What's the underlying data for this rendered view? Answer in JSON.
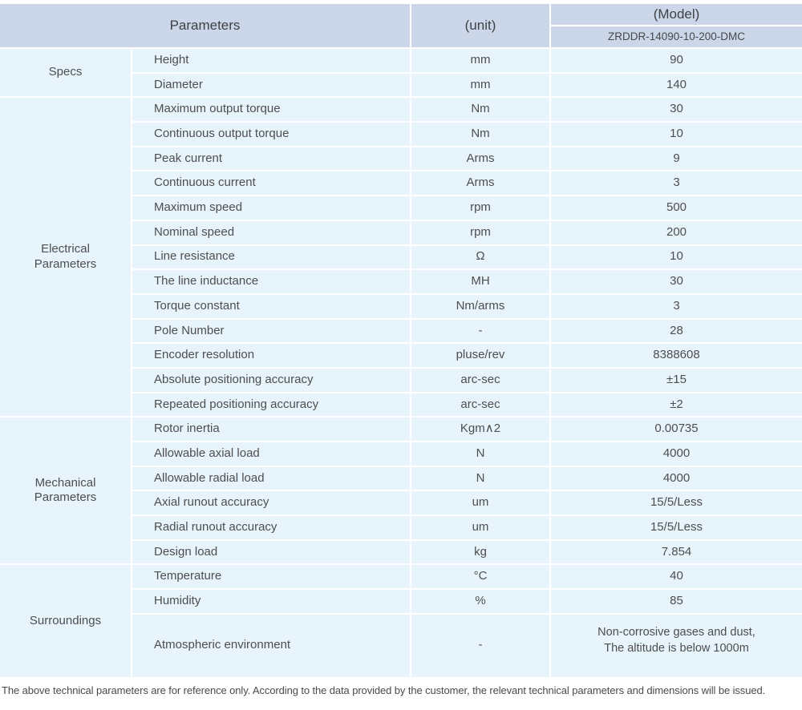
{
  "colors": {
    "header_bg": "#cbd6e9",
    "cell_bg": "#e7f4fc",
    "text": "#4e4e4e"
  },
  "header": {
    "parameters_label": "Parameters",
    "unit_label": "(unit)",
    "model_label": "(Model)",
    "model_value": "ZRDDR-14090-10-200-DMC"
  },
  "sections": [
    {
      "label": "Specs",
      "rows": [
        {
          "param": "Height",
          "unit": "mm",
          "value": "90"
        },
        {
          "param": "Diameter",
          "unit": "mm",
          "value": "140"
        }
      ]
    },
    {
      "label": "Electrical Parameters",
      "rows": [
        {
          "param": "Maximum output torque",
          "unit": "Nm",
          "value": "30"
        },
        {
          "param": "Continuous output torque",
          "unit": "Nm",
          "value": "10"
        },
        {
          "param": "Peak current",
          "unit": "Arms",
          "value": "9"
        },
        {
          "param": "Continuous current",
          "unit": "Arms",
          "value": "3"
        },
        {
          "param": "Maximum speed",
          "unit": "rpm",
          "value": "500"
        },
        {
          "param": "Nominal speed",
          "unit": "rpm",
          "value": "200"
        },
        {
          "param": "Line resistance",
          "unit": "Ω",
          "value": "10"
        },
        {
          "param": "The line inductance",
          "unit": "MH",
          "value": "30"
        },
        {
          "param": "Torque constant",
          "unit": "Nm/arms",
          "value": "3"
        },
        {
          "param": "Pole Number",
          "unit": "-",
          "value": "28"
        },
        {
          "param": "Encoder resolution",
          "unit": "pluse/rev",
          "value": "8388608"
        },
        {
          "param": "Absolute positioning accuracy",
          "unit": "arc-sec",
          "value": "±15"
        },
        {
          "param": "Repeated positioning accuracy",
          "unit": "arc-sec",
          "value": "±2"
        }
      ]
    },
    {
      "label": "Mechanical Parameters",
      "rows": [
        {
          "param": "Rotor inertia",
          "unit": "Kgm∧2",
          "value": "0.00735"
        },
        {
          "param": "Allowable axial load",
          "unit": "N",
          "value": "4000"
        },
        {
          "param": "Allowable radial load",
          "unit": "N",
          "value": "4000"
        },
        {
          "param": "Axial runout accuracy",
          "unit": "um",
          "value": "15/5/Less"
        },
        {
          "param": "Radial runout accuracy",
          "unit": "um",
          "value": "15/5/Less"
        },
        {
          "param": "Design load",
          "unit": "kg",
          "value": "7.854"
        }
      ]
    },
    {
      "label": "Surroundings",
      "rows": [
        {
          "param": "Temperature",
          "unit": "°C",
          "value": "40"
        },
        {
          "param": "Humidity",
          "unit": "%",
          "value": "85"
        },
        {
          "param": "Atmospheric environment",
          "unit": "-",
          "value": "Non-corrosive gases and dust,\nThe altitude is below 1000m"
        }
      ]
    }
  ],
  "footer": {
    "note": "The above technical parameters are for reference only. According to the data provided by the customer, the relevant technical parameters and dimensions will be issued."
  }
}
